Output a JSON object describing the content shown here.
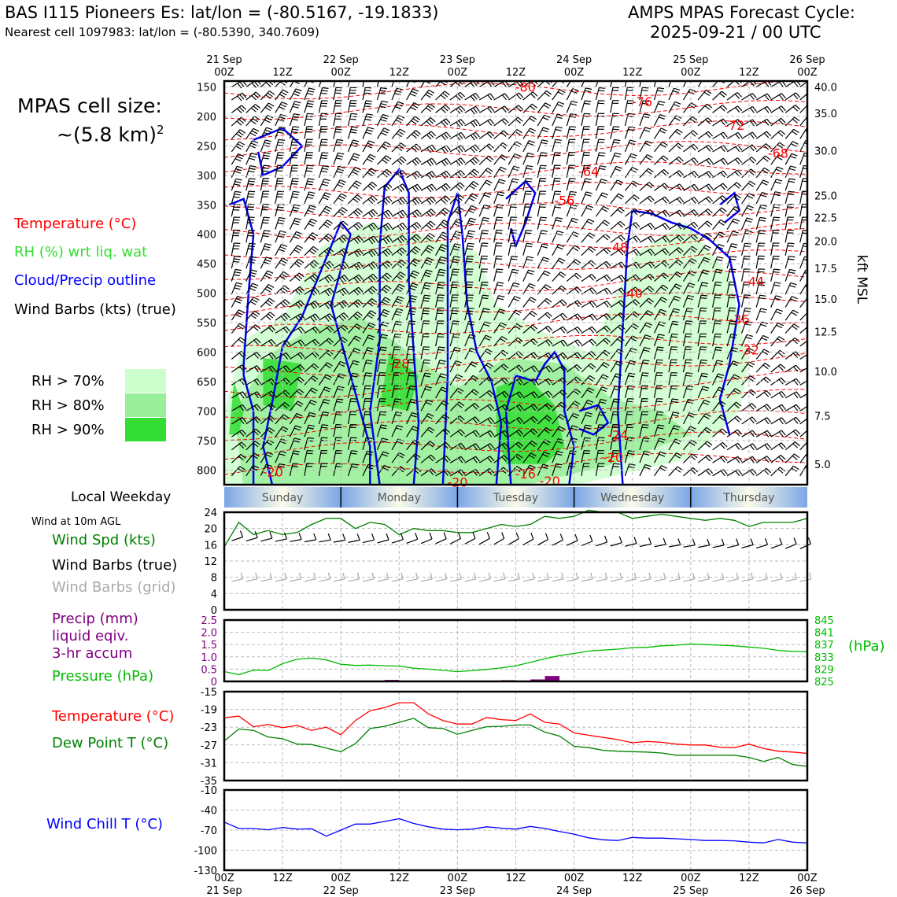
{
  "header": {
    "station": "BAS I115 Pioneers Es: lat/lon = (-80.5167, -19.1833)",
    "nearest": "Nearest cell 1097983: lat/lon = (-80.5390, 340.7609)",
    "cycle_line1": "AMPS MPAS Forecast Cycle:",
    "cycle_line2": "2025-09-21 / 00 UTC"
  },
  "left_legend": {
    "cell_size_line1": "MPAS cell size:",
    "cell_size_line2": "~(5.8 km)",
    "cell_size_sup": "2",
    "temperature": "Temperature (°C)",
    "rh": "RH (%) wrt liq. wat",
    "cloud": "Cloud/Precip outline",
    "barbs": "Wind Barbs (kts) (true)",
    "rh70": "RH > 70%",
    "rh80": "RH > 80%",
    "rh90": "RH > 90%",
    "rh_colors": [
      "#ccffcc",
      "#99ee99",
      "#33dd33"
    ],
    "local_weekday": "Local Weekday",
    "wind_10m": "Wind at 10m AGL",
    "wind_spd": "Wind Spd (kts)",
    "wind_barbs_true": "Wind Barbs (true)",
    "wind_barbs_grid": "Wind Barbs (grid)",
    "precip_line1": "Precip (mm)",
    "precip_line2": "liquid eqiv.",
    "precip_line3": "3-hr accum",
    "pressure": "Pressure (hPa)",
    "temperature2": "Temperature (°C)",
    "dewpoint": "Dew Point T (°C)",
    "windchill": "Wind Chill T (°C)"
  },
  "time_axis": {
    "top_ticks": [
      {
        "t": 0,
        "l1": "21 Sep",
        "l2": "00Z"
      },
      {
        "t": 12,
        "l1": "",
        "l2": "12Z"
      },
      {
        "t": 24,
        "l1": "22 Sep",
        "l2": "00Z"
      },
      {
        "t": 36,
        "l1": "",
        "l2": "12Z"
      },
      {
        "t": 48,
        "l1": "23 Sep",
        "l2": "00Z"
      },
      {
        "t": 60,
        "l1": "",
        "l2": "12Z"
      },
      {
        "t": 72,
        "l1": "24 Sep",
        "l2": "00Z"
      },
      {
        "t": 84,
        "l1": "",
        "l2": "12Z"
      },
      {
        "t": 96,
        "l1": "25 Sep",
        "l2": "00Z"
      },
      {
        "t": 108,
        "l1": "",
        "l2": "12Z"
      },
      {
        "t": 120,
        "l1": "26 Sep",
        "l2": "00Z"
      }
    ],
    "range_hours": [
      0,
      120
    ]
  },
  "weekday_bar": {
    "days": [
      {
        "name": "Sunday",
        "start": 0,
        "end": 24
      },
      {
        "name": "Monday",
        "start": 24,
        "end": 48
      },
      {
        "name": "Tuesday",
        "start": 48,
        "end": 72
      },
      {
        "name": "Wednesday",
        "start": 72,
        "end": 96
      },
      {
        "name": "Thursday",
        "start": 96,
        "end": 120
      }
    ]
  },
  "chart_data": [
    {
      "type": "heatmap",
      "name": "time-height cross section",
      "y_pressure_ticks": [
        150,
        200,
        250,
        300,
        350,
        400,
        450,
        500,
        550,
        600,
        650,
        700,
        750,
        800
      ],
      "ylim_pressure": [
        140,
        825
      ],
      "ylabel_right": "kft MSL",
      "kft_ticks": [
        {
          "p": 150,
          "l": "40.0"
        },
        {
          "p": 195,
          "l": "35.0"
        },
        {
          "p": 258,
          "l": "30.0"
        },
        {
          "p": 334,
          "l": "25.0"
        },
        {
          "p": 372,
          "l": "22.5"
        },
        {
          "p": 412,
          "l": "20.0"
        },
        {
          "p": 458,
          "l": "17.5"
        },
        {
          "p": 510,
          "l": "15.0"
        },
        {
          "p": 565,
          "l": "12.5"
        },
        {
          "p": 633,
          "l": "10.0"
        },
        {
          "p": 708,
          "l": "7.5"
        },
        {
          "p": 790,
          "l": "5.0"
        }
      ],
      "temp_labels": [
        {
          "t": 62,
          "p": 150,
          "l": "-80"
        },
        {
          "t": 86,
          "p": 175,
          "l": "-76"
        },
        {
          "t": 105,
          "p": 215,
          "l": "-72"
        },
        {
          "t": 114,
          "p": 262,
          "l": "-68"
        },
        {
          "t": 75,
          "p": 293,
          "l": "-64"
        },
        {
          "t": 70,
          "p": 342,
          "l": "-56"
        },
        {
          "t": 81,
          "p": 422,
          "l": "-48"
        },
        {
          "t": 84,
          "p": 500,
          "l": "-40"
        },
        {
          "t": 109,
          "p": 480,
          "l": "-44"
        },
        {
          "t": 106,
          "p": 544,
          "l": "-36"
        },
        {
          "t": 108,
          "p": 596,
          "l": "-32"
        },
        {
          "t": 36,
          "p": 619,
          "l": "-28"
        },
        {
          "t": 81,
          "p": 740,
          "l": "-24"
        },
        {
          "t": 80,
          "p": 778,
          "l": "-20"
        },
        {
          "t": 10,
          "p": 803,
          "l": "-20"
        },
        {
          "t": 48,
          "p": 820,
          "l": "-20"
        },
        {
          "t": 62,
          "p": 806,
          "l": "-16"
        },
        {
          "t": 67,
          "p": 818,
          "l": "-20"
        }
      ]
    },
    {
      "type": "line",
      "name": "Wind speed 10m",
      "xlabel": "",
      "ylabel": "",
      "ylim": [
        0,
        24
      ],
      "yticks": [
        0,
        4,
        8,
        12,
        16,
        20,
        24
      ],
      "x": [
        0,
        3,
        6,
        9,
        12,
        15,
        18,
        21,
        24,
        27,
        30,
        33,
        36,
        39,
        42,
        45,
        48,
        51,
        54,
        57,
        60,
        63,
        66,
        69,
        72,
        75,
        78,
        81,
        84,
        87,
        90,
        93,
        96,
        99,
        102,
        105,
        108,
        111,
        114,
        117,
        120
      ],
      "series": [
        {
          "name": "Wind Spd (kts)",
          "color": "#008000",
          "values": [
            15.5,
            21.5,
            18.5,
            19.5,
            18.5,
            19,
            21,
            22.5,
            22.5,
            20,
            21.5,
            21,
            18.5,
            20,
            19.5,
            19.5,
            19,
            19,
            20,
            21,
            20.5,
            21,
            23,
            22.5,
            23,
            24.5,
            24,
            24,
            22.5,
            23,
            23.5,
            23,
            22.5,
            22,
            22.5,
            22,
            20.5,
            21.5,
            21.5,
            21.5,
            22.5
          ]
        }
      ]
    },
    {
      "type": "line",
      "name": "Precip and pressure",
      "ylim_precip": [
        0,
        2.5
      ],
      "yticks_precip": [
        0,
        0.5,
        1.0,
        1.5,
        2.0,
        2.5
      ],
      "ytick_labels_precip": [
        "0",
        "0.5",
        "1.0",
        "1.5",
        "2.0",
        "2.5"
      ],
      "ylim_pressure": [
        825,
        845
      ],
      "yticks_pressure": [
        825,
        829,
        833,
        837,
        841,
        845
      ],
      "ylabel_right": "(hPa)",
      "x": [
        0,
        3,
        6,
        9,
        12,
        15,
        18,
        21,
        24,
        27,
        30,
        33,
        36,
        39,
        42,
        45,
        48,
        51,
        54,
        57,
        60,
        63,
        66,
        69,
        72,
        75,
        78,
        81,
        84,
        87,
        90,
        93,
        96,
        99,
        102,
        105,
        108,
        111,
        114,
        117,
        120
      ],
      "series": [
        {
          "name": "Pressure (hPa)",
          "color": "#00bb00",
          "values": [
            828.2,
            827.2,
            828.7,
            828.5,
            830.8,
            832.2,
            832.6,
            832,
            830.6,
            830.2,
            830.3,
            830.1,
            830,
            829.3,
            829,
            828.6,
            828.2,
            828.5,
            828.9,
            829.4,
            830.1,
            831.2,
            832.4,
            833.4,
            834.1,
            834.9,
            835.2,
            835.5,
            836,
            836.1,
            836.6,
            836.8,
            837.2,
            837,
            836.8,
            836.6,
            836.2,
            835.8,
            835.1,
            834.8,
            834.7
          ]
        },
        {
          "name": "Precip (mm)",
          "color": "#800080",
          "bars": [
            {
              "t": 34.5,
              "v": 0.06
            },
            {
              "t": 58.5,
              "v": 0.05
            },
            {
              "t": 64.5,
              "v": 0.08
            },
            {
              "t": 67.5,
              "v": 0.22
            }
          ]
        }
      ]
    },
    {
      "type": "line",
      "name": "Temperature and dew point",
      "ylim": [
        -35,
        -15
      ],
      "yticks": [
        -35,
        -31,
        -27,
        -23,
        -19,
        -15
      ],
      "x": [
        0,
        3,
        6,
        9,
        12,
        15,
        18,
        21,
        24,
        27,
        30,
        33,
        36,
        39,
        42,
        45,
        48,
        51,
        54,
        57,
        60,
        63,
        66,
        69,
        72,
        75,
        78,
        81,
        84,
        87,
        90,
        93,
        96,
        99,
        102,
        105,
        108,
        111,
        114,
        117,
        120
      ],
      "series": [
        {
          "name": "Temperature (°C)",
          "color": "#ff0000",
          "values": [
            -20.9,
            -20.5,
            -22.9,
            -22.4,
            -23.1,
            -22.6,
            -23.7,
            -23,
            -24.7,
            -21.5,
            -19.3,
            -18.6,
            -17.5,
            -17.5,
            -20,
            -21.5,
            -22.3,
            -22.3,
            -20.8,
            -21.3,
            -21.5,
            -20,
            -21.9,
            -22.3,
            -24.3,
            -24.8,
            -25.3,
            -25.8,
            -26.5,
            -26.2,
            -26.4,
            -26.8,
            -27,
            -27,
            -27.5,
            -27.6,
            -26.8,
            -27.8,
            -28.4,
            -28.6,
            -28.9
          ]
        },
        {
          "name": "Dew Point T (°C)",
          "color": "#008000",
          "values": [
            -26.1,
            -23.4,
            -23.7,
            -25.2,
            -25.6,
            -26.8,
            -26.9,
            -27.7,
            -28.5,
            -26.7,
            -23.3,
            -22.8,
            -21.9,
            -21,
            -23.1,
            -23.3,
            -24.6,
            -23.7,
            -22.9,
            -22.8,
            -22.5,
            -22.5,
            -24.1,
            -25,
            -27.3,
            -27.6,
            -28.2,
            -28.4,
            -28.5,
            -28.6,
            -28.8,
            -29.3,
            -29.3,
            -29.3,
            -29.3,
            -29.3,
            -29.8,
            -30.7,
            -29.8,
            -31.4,
            -31.8
          ]
        }
      ]
    },
    {
      "type": "line",
      "name": "Wind chill",
      "ylim": [
        -130,
        -10
      ],
      "yticks": [
        -130,
        -100,
        -70,
        -40,
        -10
      ],
      "x": [
        0,
        3,
        6,
        9,
        12,
        15,
        18,
        21,
        24,
        27,
        30,
        33,
        36,
        39,
        42,
        45,
        48,
        51,
        54,
        57,
        60,
        63,
        66,
        69,
        72,
        75,
        78,
        81,
        84,
        87,
        90,
        93,
        96,
        99,
        102,
        105,
        108,
        111,
        114,
        117,
        120
      ],
      "series": [
        {
          "name": "Wind Chill T (°C)",
          "color": "#0000ff",
          "values": [
            -58,
            -67.5,
            -67.5,
            -69.5,
            -66,
            -68.5,
            -68,
            -79,
            -70,
            -61,
            -61,
            -57,
            -53,
            -60,
            -65,
            -68.5,
            -69.5,
            -68.5,
            -65,
            -67,
            -68.5,
            -64.5,
            -67.5,
            -72,
            -76,
            -81.5,
            -84.5,
            -85.5,
            -81,
            -82,
            -82,
            -83,
            -84,
            -85.5,
            -85.5,
            -86,
            -88,
            -89,
            -84,
            -88,
            -89
          ]
        }
      ]
    }
  ],
  "bottom_axis": {
    "ticks": [
      {
        "t": 0,
        "l1": "00Z",
        "l2": "21 Sep"
      },
      {
        "t": 12,
        "l1": "12Z",
        "l2": ""
      },
      {
        "t": 24,
        "l1": "00Z",
        "l2": "22 Sep"
      },
      {
        "t": 36,
        "l1": "12Z",
        "l2": ""
      },
      {
        "t": 48,
        "l1": "00Z",
        "l2": "23 Sep"
      },
      {
        "t": 60,
        "l1": "12Z",
        "l2": ""
      },
      {
        "t": 72,
        "l1": "00Z",
        "l2": "24 Sep"
      },
      {
        "t": 84,
        "l1": "12Z",
        "l2": ""
      },
      {
        "t": 96,
        "l1": "00Z",
        "l2": "25 Sep"
      },
      {
        "t": 108,
        "l1": "12Z",
        "l2": ""
      },
      {
        "t": 120,
        "l1": "00Z",
        "l2": "26 Sep"
      }
    ]
  }
}
